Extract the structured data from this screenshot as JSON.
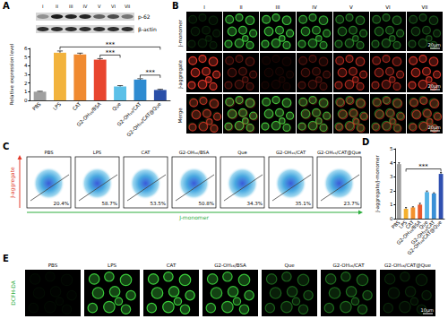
{
  "chart_data": [
    {
      "type": "bar",
      "categories": [
        "PBS",
        "LPS",
        "CAT",
        "G2-OH₁₆/BSA",
        "Que",
        "G2-OH₁₆/CAT",
        "G2-OH₁₆/CAT@Que"
      ],
      "values": [
        1.0,
        5.5,
        5.3,
        4.7,
        1.6,
        2.4,
        1.2
      ],
      "errors": [
        0.05,
        0.2,
        0.15,
        0.12,
        0.1,
        0.1,
        0.08
      ],
      "colors": [
        "#a0a0a0",
        "#f2b33d",
        "#f08a30",
        "#e8452e",
        "#5bc0e8",
        "#2e8bd1",
        "#2a4fa8"
      ],
      "ylabel": "Relative expression level",
      "ylim": [
        0,
        6
      ],
      "yticks": [
        0,
        1,
        2,
        3,
        4,
        5,
        6
      ],
      "grid": false,
      "annotations": [
        {
          "from": "LPS",
          "to": "G2-OH₁₆/CAT@Que",
          "label": "***"
        },
        {
          "from": "G2-OH₁₆/BSA",
          "to": "Que",
          "label": "***"
        },
        {
          "from": "G2-OH₁₆/CAT",
          "to": "G2-OH₁₆/CAT@Que",
          "label": "***"
        }
      ]
    },
    {
      "type": "bar",
      "categories": [
        "PBS",
        "LPS",
        "CAT",
        "G2-OH₁₆/BSA",
        "Que",
        "G2-OH₁₆/CAT",
        "G2-OH₁₆/CAT@Que"
      ],
      "values": [
        3.9,
        0.7,
        0.8,
        1.0,
        1.9,
        1.8,
        3.2
      ],
      "errors": [
        0.1,
        0.1,
        0.05,
        0.1,
        0.08,
        0.05,
        0.1
      ],
      "colors": [
        "#9e9e9e",
        "#f5b02e",
        "#f3912f",
        "#e85a2c",
        "#55b3e6",
        "#3a8fd6",
        "#3050b0"
      ],
      "ylabel": "J-aggregate/J-monomer",
      "ylim": [
        0,
        5
      ],
      "yticks": [
        0,
        1,
        2,
        3,
        4,
        5
      ],
      "grid": false,
      "annotations": [
        {
          "from": "LPS",
          "to": "G2-OH₁₆/CAT@Que",
          "label": "***"
        }
      ]
    }
  ],
  "figure": {
    "panel_labels": [
      "A",
      "B",
      "C",
      "D",
      "E"
    ],
    "blot": {
      "lanes": [
        "I",
        "II",
        "III",
        "IV",
        "V",
        "VI",
        "VII"
      ],
      "bands": [
        "p-62",
        "β-actin"
      ]
    },
    "microscopy": {
      "columns": [
        "I",
        "II",
        "III",
        "IV",
        "V",
        "VI",
        "VII"
      ],
      "rows": [
        "J-monomer",
        "J-aggregate",
        "Merge"
      ],
      "scale_bar": "20μm"
    },
    "flow": {
      "groups": [
        "PBS",
        "LPS",
        "CAT",
        "G2-OH₁₆/BSA",
        "Que",
        "G2-OH₁₆/CAT",
        "G2-OH₁₆/CAT@Que"
      ],
      "y_axis": "J-aggregate",
      "x_axis": "J-monomer",
      "gates": [
        "20.4%",
        "58.7%",
        "53.5%",
        "50.8%",
        "34.3%",
        "35.1%",
        "23.7%"
      ]
    },
    "fluorescence": {
      "stain": "DCFH-DA",
      "groups": [
        "PBS",
        "LPS",
        "CAT",
        "G2-OH₁₆/BSA",
        "Que",
        "G2-OH₁₆/CAT",
        "G2-OH₁₆/CAT@Que"
      ],
      "scale_bar": "10μm"
    }
  }
}
